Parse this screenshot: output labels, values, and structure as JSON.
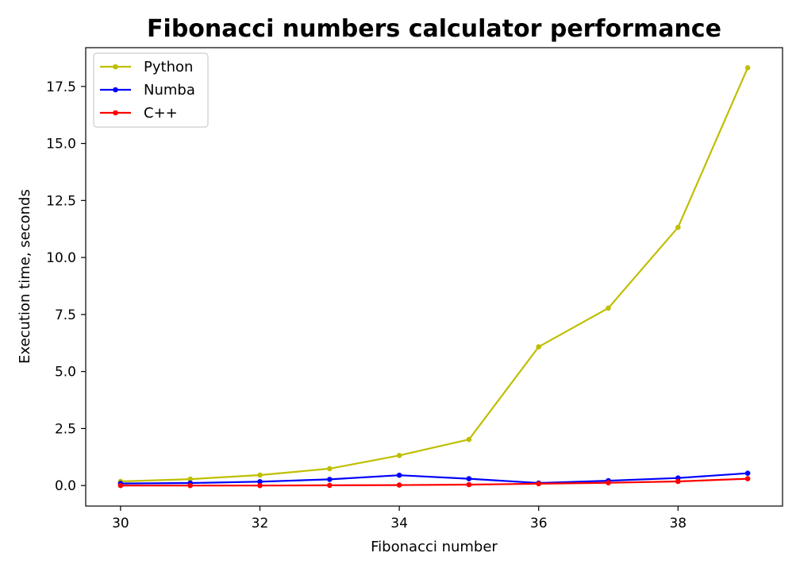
{
  "chart_data": {
    "type": "line",
    "title": "Fibonacci numbers calculator performance",
    "xlabel": "Fibonacci number",
    "ylabel": "Execution time, seconds",
    "xlim": [
      29.5,
      39.5
    ],
    "ylim": [
      -0.9,
      19.2
    ],
    "xticks": [
      30,
      32,
      34,
      36,
      38
    ],
    "xtick_labels": [
      "30",
      "32",
      "34",
      "36",
      "38"
    ],
    "yticks": [
      0.0,
      2.5,
      5.0,
      7.5,
      10.0,
      12.5,
      15.0,
      17.5
    ],
    "ytick_labels": [
      "0.0",
      "2.5",
      "5.0",
      "7.5",
      "10.0",
      "12.5",
      "15.0",
      "17.5"
    ],
    "grid": false,
    "legend_position": "top-left",
    "x": [
      30,
      31,
      32,
      33,
      34,
      35,
      36,
      37,
      38,
      39
    ],
    "series": [
      {
        "name": "Python",
        "color": "#bfbf00",
        "values": [
          0.18,
          0.28,
          0.46,
          0.74,
          1.32,
          2.02,
          6.08,
          7.78,
          11.32,
          18.32
        ]
      },
      {
        "name": "Numba",
        "color": "#0000ff",
        "values": [
          0.09,
          0.11,
          0.17,
          0.27,
          0.45,
          0.3,
          0.11,
          0.21,
          0.33,
          0.54
        ]
      },
      {
        "name": "C++",
        "color": "#ff0000",
        "values": [
          0.0,
          0.0,
          0.0,
          0.01,
          0.02,
          0.04,
          0.08,
          0.12,
          0.18,
          0.3
        ]
      }
    ]
  }
}
